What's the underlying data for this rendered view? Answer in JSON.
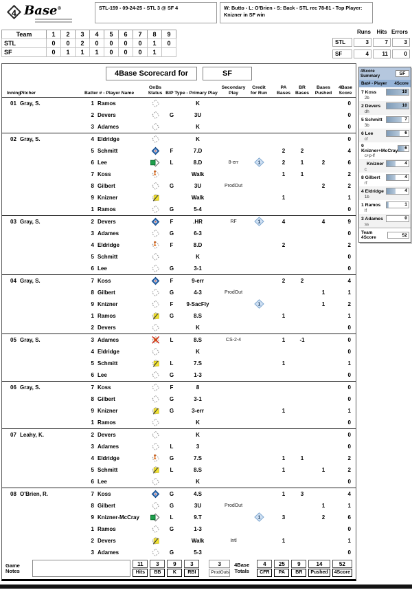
{
  "logo": {
    "four": "4",
    "base": "Base",
    "reg": "®"
  },
  "header": {
    "game_line": "STL-159 - 09-24-25 - STL 3 @ SF 4",
    "result_line": "W: Butto - L: O'Brien - S: Back - STL rec 78-81 - Top Player: Knizner in SF win"
  },
  "linescore": {
    "team_col": "Team",
    "inning_cols": [
      "1",
      "2",
      "3",
      "4",
      "5",
      "6",
      "7",
      "8",
      "9"
    ],
    "rows": [
      {
        "team": "STL",
        "by_inning": [
          "0",
          "0",
          "2",
          "0",
          "0",
          "0",
          "0",
          "1",
          "0"
        ]
      },
      {
        "team": "SF",
        "by_inning": [
          "0",
          "1",
          "1",
          "1",
          "0",
          "0",
          "0",
          "1",
          ""
        ]
      }
    ]
  },
  "rhe": {
    "cols": [
      "Runs",
      "Hits",
      "Errors"
    ],
    "rows": [
      {
        "team": "STL",
        "values": [
          "3",
          "7",
          "3"
        ]
      },
      {
        "team": "SF",
        "values": [
          "4",
          "11",
          "0"
        ]
      }
    ]
  },
  "colors": {
    "panel_header": "#b5c7de",
    "panel_subheader": "#95b3d7",
    "scored_diamond": "#2f6db5",
    "credit_diamond": "#cfe0f3"
  },
  "scorecard": {
    "title": "4Base Scorecard for",
    "team": "SF",
    "headers": {
      "inning": "Inning",
      "pitcher": "Pitcher",
      "batter": "Batter # - Player Name",
      "onbs": "OnBs Status",
      "bip": "BIP Type - Primary Play",
      "secondary": "Secondary Play",
      "credit": "Credit for Run",
      "pa": "PA Bases",
      "br": "BR Bases",
      "pushed": "Bases Pushed",
      "score": "4Base Score"
    },
    "onbs_legend": {
      "out": "batter-out",
      "scored": "scored-run",
      "on-third": "runner-on-third",
      "on-second": "runner-on-second",
      "on-first": "runner-on-first",
      "out-cs": "out-caught-stealing"
    },
    "innings": [
      {
        "num": "01",
        "pitcher": "Gray, S.",
        "rows": [
          {
            "bat": "1",
            "player": "Ramos",
            "onbs": "out",
            "play": "K",
            "score": "0"
          },
          {
            "bat": "2",
            "player": "Devers",
            "onbs": "out",
            "bip": "G",
            "play": "3U",
            "score": "0"
          },
          {
            "bat": "3",
            "player": "Adames",
            "onbs": "out",
            "play": "K",
            "score": "0"
          }
        ]
      },
      {
        "num": "02",
        "pitcher": "Gray, S.",
        "rows": [
          {
            "bat": "4",
            "player": "Eldridge",
            "onbs": "out",
            "play": "K",
            "score": "0"
          },
          {
            "bat": "5",
            "player": "Schmitt",
            "onbs": "scored",
            "bip": "F",
            "play": "7.D",
            "pa": "2",
            "br": "2",
            "score": "4"
          },
          {
            "bat": "6",
            "player": "Lee",
            "onbs": "on-third",
            "bip": "L",
            "play": "8.D",
            "sec": "8-err",
            "cfr": "1",
            "pa": "2",
            "br": "1",
            "push": "2",
            "score": "6"
          },
          {
            "bat": "7",
            "player": "Koss",
            "onbs": "on-second",
            "play": "Walk",
            "pa": "1",
            "br": "1",
            "score": "2"
          },
          {
            "bat": "8",
            "player": "Gilbert",
            "onbs": "out",
            "bip": "G",
            "play": "3U",
            "sec": "ProdOut",
            "push": "2",
            "score": "2"
          },
          {
            "bat": "9",
            "player": "Knizner",
            "onbs": "on-first",
            "play": "Walk",
            "pa": "1",
            "score": "1"
          },
          {
            "bat": "1",
            "player": "Ramos",
            "onbs": "out",
            "bip": "G",
            "play": "5-4",
            "score": "0"
          }
        ]
      },
      {
        "num": "03",
        "pitcher": "Gray, S.",
        "rows": [
          {
            "bat": "2",
            "player": "Devers",
            "onbs": "scored",
            "bip": "F",
            "play": ".HR",
            "sec": "RF",
            "cfr": "1",
            "pa": "4",
            "push": "4",
            "score": "9"
          },
          {
            "bat": "3",
            "player": "Adames",
            "onbs": "out",
            "bip": "G",
            "play": "6-3",
            "score": "0"
          },
          {
            "bat": "4",
            "player": "Eldridge",
            "onbs": "on-second",
            "bip": "F",
            "play": "8.D",
            "pa": "2",
            "score": "2"
          },
          {
            "bat": "5",
            "player": "Schmitt",
            "onbs": "out",
            "play": "K",
            "score": "0"
          },
          {
            "bat": "6",
            "player": "Lee",
            "onbs": "out",
            "bip": "G",
            "play": "3-1",
            "score": "0"
          }
        ]
      },
      {
        "num": "04",
        "pitcher": "Gray, S.",
        "rows": [
          {
            "bat": "7",
            "player": "Koss",
            "onbs": "scored",
            "bip": "F",
            "play": "9-err",
            "pa": "2",
            "br": "2",
            "score": "4"
          },
          {
            "bat": "8",
            "player": "Gilbert",
            "onbs": "out",
            "bip": "G",
            "play": "4-3",
            "sec": "ProdOut",
            "push": "1",
            "score": "1"
          },
          {
            "bat": "9",
            "player": "Knizner",
            "onbs": "out",
            "bip": "F",
            "play": "9-SacFly",
            "cfr": "1",
            "push": "1",
            "score": "2"
          },
          {
            "bat": "1",
            "player": "Ramos",
            "onbs": "on-first",
            "bip": "G",
            "play": "8.S",
            "pa": "1",
            "score": "1"
          },
          {
            "bat": "2",
            "player": "Devers",
            "onbs": "out",
            "play": "K",
            "score": "0"
          }
        ]
      },
      {
        "num": "05",
        "pitcher": "Gray, S.",
        "rows": [
          {
            "bat": "3",
            "player": "Adames",
            "onbs": "out-cs",
            "bip": "L",
            "play": "8.S",
            "sec": "CS-2-4",
            "pa": "1",
            "br": "-1",
            "score": "0"
          },
          {
            "bat": "4",
            "player": "Eldridge",
            "onbs": "out",
            "play": "K",
            "score": "0"
          },
          {
            "bat": "5",
            "player": "Schmitt",
            "onbs": "on-first",
            "bip": "L",
            "play": "7.S",
            "pa": "1",
            "score": "1"
          },
          {
            "bat": "6",
            "player": "Lee",
            "onbs": "out",
            "bip": "G",
            "play": "1-3",
            "score": "0"
          }
        ]
      },
      {
        "num": "06",
        "pitcher": "Gray, S.",
        "rows": [
          {
            "bat": "7",
            "player": "Koss",
            "onbs": "out",
            "bip": "F",
            "play": "8",
            "score": "0"
          },
          {
            "bat": "8",
            "player": "Gilbert",
            "onbs": "out",
            "bip": "G",
            "play": "3-1",
            "score": "0"
          },
          {
            "bat": "9",
            "player": "Knizner",
            "onbs": "on-first",
            "bip": "G",
            "play": "3-err",
            "pa": "1",
            "score": "1"
          },
          {
            "bat": "1",
            "player": "Ramos",
            "onbs": "out",
            "play": "K",
            "score": "0"
          }
        ]
      },
      {
        "num": "07",
        "pitcher": "Leahy, K.",
        "rows": [
          {
            "bat": "2",
            "player": "Devers",
            "onbs": "out",
            "play": "K",
            "score": "0"
          },
          {
            "bat": "3",
            "player": "Adames",
            "onbs": "out",
            "bip": "L",
            "play": "3",
            "score": "0"
          },
          {
            "bat": "4",
            "player": "Eldridge",
            "onbs": "on-second",
            "bip": "G",
            "play": "7.S",
            "pa": "1",
            "br": "1",
            "score": "2"
          },
          {
            "bat": "5",
            "player": "Schmitt",
            "onbs": "on-first",
            "bip": "L",
            "play": "8.S",
            "pa": "1",
            "push": "1",
            "score": "2"
          },
          {
            "bat": "6",
            "player": "Lee",
            "onbs": "out",
            "play": "K",
            "score": "0"
          }
        ]
      },
      {
        "num": "08",
        "pitcher": "O'Brien, R.",
        "rows": [
          {
            "bat": "7",
            "player": "Koss",
            "onbs": "scored",
            "bip": "G",
            "play": "4.S",
            "pa": "1",
            "br": "3",
            "score": "4"
          },
          {
            "bat": "8",
            "player": "Gilbert",
            "onbs": "out",
            "bip": "G",
            "play": "3U",
            "sec": "ProdOut",
            "push": "1",
            "score": "1"
          },
          {
            "bat": "9",
            "player": "Knizner-McCray",
            "onbs": "on-third",
            "bip": "L",
            "play": "9.T",
            "cfr": "1",
            "pa": "3",
            "push": "2",
            "score": "6"
          },
          {
            "bat": "1",
            "player": "Ramos",
            "onbs": "out",
            "bip": "G",
            "play": "1-3",
            "score": "0"
          },
          {
            "bat": "2",
            "player": "Devers",
            "onbs": "on-first",
            "play": "Walk",
            "sec": "Intl",
            "pa": "1",
            "score": "1"
          },
          {
            "bat": "3",
            "player": "Adames",
            "onbs": "out",
            "bip": "G",
            "play": "5-3",
            "score": "0"
          }
        ]
      }
    ]
  },
  "footer": {
    "notes_label": "Game Notes",
    "stat_boxes": [
      {
        "value": "11",
        "label": "Hits"
      },
      {
        "value": "3",
        "label": "BB"
      },
      {
        "value": "9",
        "label": "K"
      },
      {
        "value": "3",
        "label": "RBI"
      }
    ],
    "prodouts": {
      "value": "3",
      "label": "ProdOuts"
    },
    "totals_label": "4Base Totals",
    "total_boxes": [
      {
        "value": "4",
        "label": "CFR"
      },
      {
        "value": "25",
        "label": "PA"
      },
      {
        "value": "9",
        "label": "BR"
      },
      {
        "value": "14",
        "label": "Pushed"
      },
      {
        "value": "52",
        "label": "4Score"
      }
    ]
  },
  "summary": {
    "title": "4Score Summary",
    "team": "SF",
    "col1": "Bat# - Player",
    "col2": "4Score",
    "max_score": 10,
    "entries": [
      {
        "bat": "7",
        "player": "Koss",
        "pos": "2b",
        "score": 10
      },
      {
        "bat": "2",
        "player": "Devers",
        "pos": "dh",
        "score": 10
      },
      {
        "bat": "5",
        "player": "Schmitt",
        "pos": "3b",
        "score": 7
      },
      {
        "bat": "6",
        "player": "Lee",
        "pos": "cf",
        "score": 6
      },
      {
        "bat": "9",
        "player": "Knizner+McCray",
        "pos": "c+p-lf",
        "score": 6
      },
      {
        "bat": "",
        "player": "Knizner",
        "pos": "c",
        "score": 4
      },
      {
        "bat": "8",
        "player": "Gilbert",
        "pos": "rf",
        "score": 4
      },
      {
        "bat": "4",
        "player": "Eldridge",
        "pos": "1b",
        "score": 4
      },
      {
        "bat": "1",
        "player": "Ramos",
        "pos": "lf",
        "score": 1
      },
      {
        "bat": "3",
        "player": "Adames",
        "pos": "ss",
        "score": 0
      }
    ],
    "team_total_label": "Team 4Score",
    "team_total": 52
  }
}
